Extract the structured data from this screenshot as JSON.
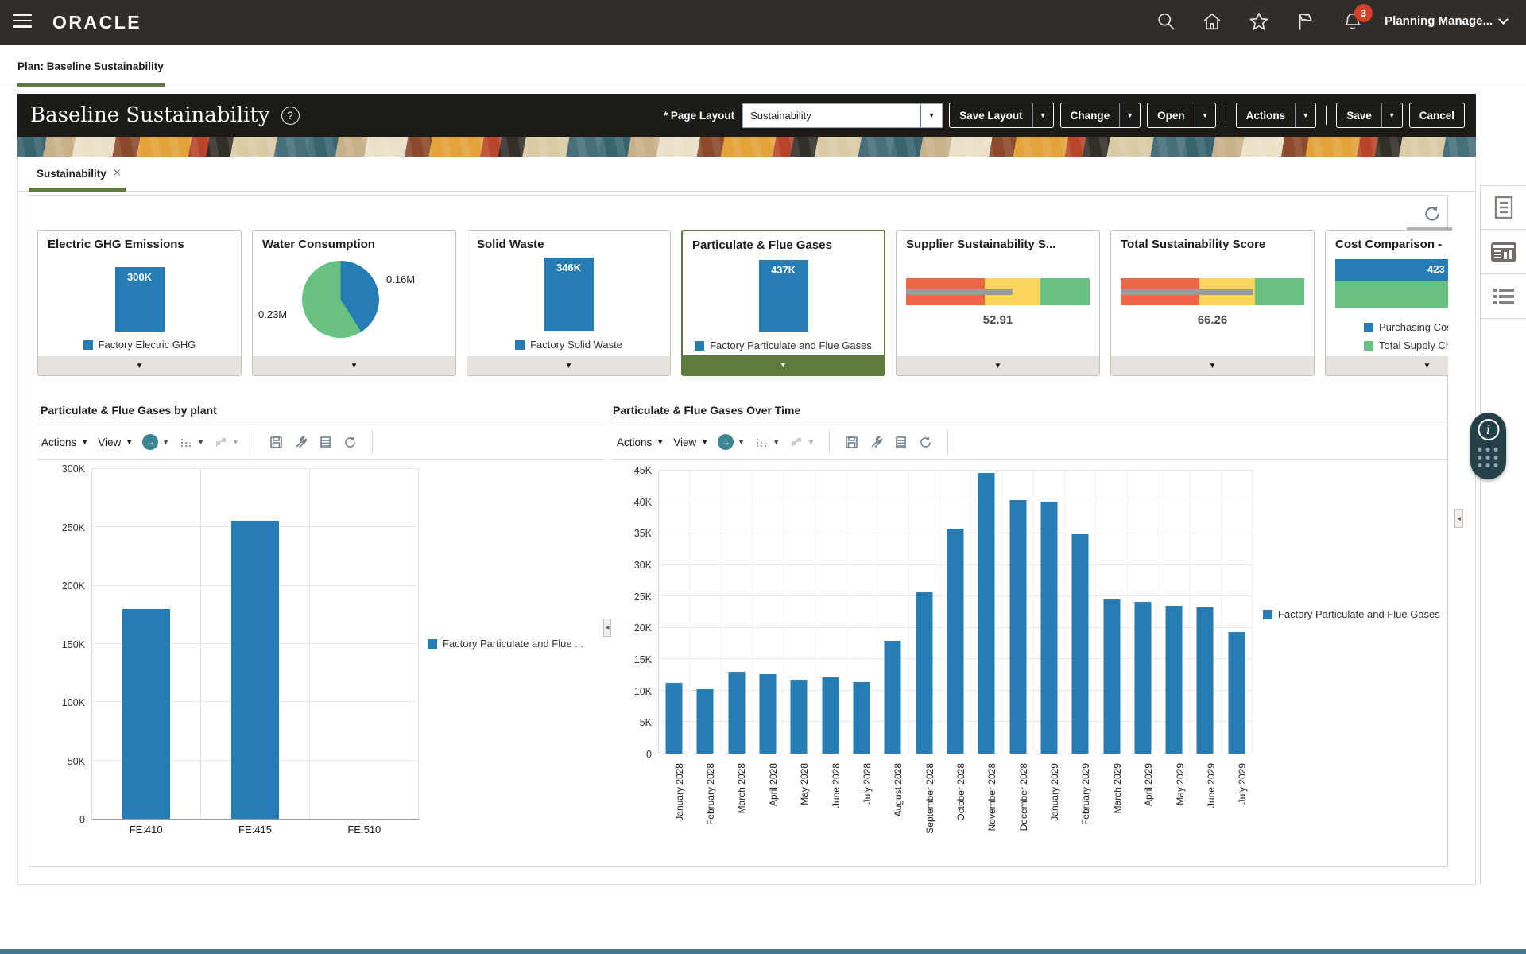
{
  "topbar": {
    "logo": "ORACLE",
    "user_menu": "Planning Manage...",
    "notification_badge": "3"
  },
  "plan_tab": {
    "label": "Plan: Baseline Sustainability"
  },
  "header": {
    "title": "Baseline Sustainability",
    "page_layout_label": "* Page Layout",
    "page_layout_value": "Sustainability",
    "save_layout": "Save Layout",
    "change": "Change",
    "open": "Open",
    "actions": "Actions",
    "save": "Save",
    "cancel": "Cancel"
  },
  "content_tab": {
    "label": "Sustainability",
    "close": "×"
  },
  "chart_toolbar": {
    "actions": "Actions",
    "view": "View"
  },
  "colors": {
    "accent_green": "#5d7b3e",
    "bar_blue": "#267db3",
    "series_green": "#68c182",
    "gauge_red": "#ed6647",
    "gauge_yellow": "#fad55c",
    "gauge_green": "#68c182"
  },
  "kpi_cards": [
    {
      "title": "Electric GHG Emissions",
      "type": "bar",
      "value_label": "300K",
      "legend": [
        {
          "label": "Factory Electric GHG",
          "color": "#267db3"
        }
      ]
    },
    {
      "title": "Water Consumption",
      "type": "pie",
      "slices": [
        {
          "label": "0.16M",
          "color": "#267db3",
          "pct": 41
        },
        {
          "label": "0.23M",
          "color": "#68c182",
          "pct": 59
        }
      ]
    },
    {
      "title": "Solid Waste",
      "type": "bar",
      "value_label": "346K",
      "legend": [
        {
          "label": "Factory Solid Waste",
          "color": "#267db3"
        }
      ]
    },
    {
      "title": "Particulate & Flue Gases",
      "type": "bar",
      "value_label": "437K",
      "selected": true,
      "legend": [
        {
          "label": "Factory Particulate and Flue Gases",
          "color": "#267db3"
        }
      ]
    },
    {
      "title": "Supplier Sustainability S...",
      "type": "gauge",
      "value_label": "52.91",
      "needle_pct": 58,
      "segments": [
        {
          "color": "#ed6647",
          "pct": 43
        },
        {
          "color": "#fad55c",
          "pct": 30
        },
        {
          "color": "#68c182",
          "pct": 27
        }
      ]
    },
    {
      "title": "Total Sustainability Score",
      "type": "gauge",
      "value_label": "66.26",
      "needle_pct": 72,
      "segments": [
        {
          "color": "#ed6647",
          "pct": 43
        },
        {
          "color": "#fad55c",
          "pct": 30
        },
        {
          "color": "#68c182",
          "pct": 27
        }
      ]
    },
    {
      "title": "Cost Comparison -",
      "type": "stacked_bar",
      "value_label": "423",
      "bars": [
        {
          "color": "#267db3"
        },
        {
          "color": "#68c182"
        }
      ],
      "legend": [
        {
          "label": "Purchasing Cos",
          "color": "#267db3"
        },
        {
          "label": "Total Supply Ch",
          "color": "#68c182"
        }
      ]
    }
  ],
  "chart_data": [
    {
      "type": "bar",
      "title": "Particulate & Flue Gases by plant",
      "categories": [
        "FE:410",
        "FE:415",
        "FE:510"
      ],
      "values": [
        180000,
        256000,
        0
      ],
      "ylim": [
        0,
        300000
      ],
      "yticks": [
        "0",
        "50K",
        "100K",
        "150K",
        "200K",
        "250K",
        "300K"
      ],
      "bar_color": "#267db3",
      "grid": true,
      "legend": [
        "Factory Particulate and Flue ..."
      ],
      "legend_position": "right"
    },
    {
      "type": "bar",
      "title": "Particulate & Flue Gases Over Time",
      "categories": [
        "January 2028",
        "February 2028",
        "March 2028",
        "April 2028",
        "May 2028",
        "June 2028",
        "July 2028",
        "August 2028",
        "September 2028",
        "October 2028",
        "November 2028",
        "December 2028",
        "January 2029",
        "February 2029",
        "March 2029",
        "April 2029",
        "May 2029",
        "June 2029",
        "July 2029"
      ],
      "values": [
        11300,
        10200,
        13000,
        12700,
        11700,
        12100,
        11400,
        18000,
        25700,
        35800,
        44600,
        40300,
        40100,
        34900,
        24500,
        24200,
        23500,
        23200,
        19300
      ],
      "ylim": [
        0,
        45000
      ],
      "yticks": [
        "0",
        "5K",
        "10K",
        "15K",
        "20K",
        "25K",
        "30K",
        "35K",
        "40K",
        "45K"
      ],
      "bar_color": "#267db3",
      "grid": true,
      "legend": [
        "Factory Particulate and Flue Gases"
      ],
      "legend_position": "right"
    }
  ]
}
